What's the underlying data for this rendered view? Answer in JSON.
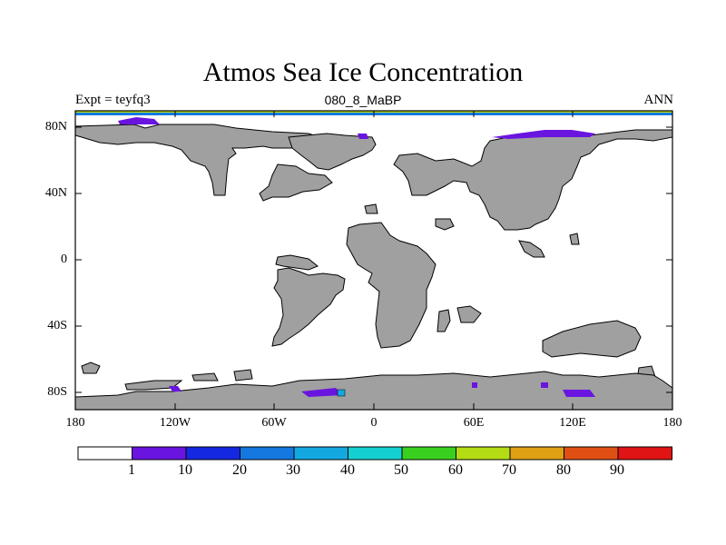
{
  "title": "Atmos Sea Ice Concentration",
  "subtitle": {
    "left": "Expt = teyfq3",
    "center": "080_8_MaBP",
    "right": "ANN"
  },
  "map": {
    "projection": "cylindrical equidistant",
    "lon_range": [
      -180,
      180
    ],
    "lat_range": [
      -90,
      90
    ],
    "land_color": "#a0a0a0",
    "ocean_color": "#ffffff",
    "lat_ticks": [
      "80N",
      "40N",
      "0",
      "40S",
      "80S"
    ],
    "lon_ticks": [
      "180",
      "120W",
      "60W",
      "0",
      "60E",
      "120E",
      "180"
    ]
  },
  "colorbar": {
    "colors": [
      "#ffffff",
      "#6a14e0",
      "#1428e0",
      "#1478e0",
      "#14a8e0",
      "#14d0d0",
      "#3ad020",
      "#b4dc14",
      "#e0a014",
      "#e05014",
      "#e01414"
    ],
    "labels": [
      "1",
      "10",
      "20",
      "30",
      "40",
      "50",
      "60",
      "70",
      "80",
      "90"
    ]
  }
}
